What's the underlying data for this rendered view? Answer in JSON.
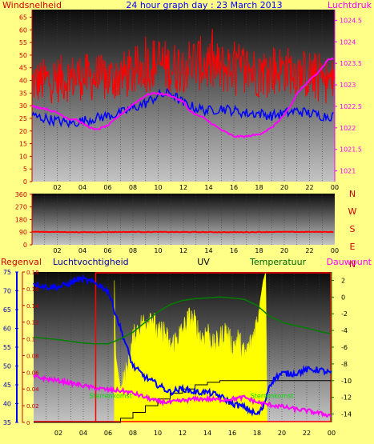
{
  "colors": {
    "page_bg": "#ffff88",
    "plot_top": "#0c0c0c",
    "plot_bottom": "#c4c4c4",
    "wind": "#ff0000",
    "pressure": "#ff00ff",
    "rain": "#ff0000",
    "humidity": "#0000ff",
    "uv": "#ffff00",
    "temperature": "#008000",
    "dewpoint": "#ff00ff",
    "day_label": "#00dd00"
  },
  "chart_data": [
    {
      "type": "line",
      "title": "24 hour graph day : 23 March 2013",
      "left_axis_label": "Windsnelheid",
      "right_axis_label": "Luchtdruk",
      "x_ticks": [
        "02",
        "04",
        "06",
        "08",
        "10",
        "12",
        "14",
        "16",
        "18",
        "20",
        "22",
        "00"
      ],
      "y_left": {
        "ylim": [
          0,
          68
        ],
        "ticks": [
          0,
          5,
          10,
          15,
          20,
          25,
          30,
          35,
          40,
          45,
          50,
          55,
          60,
          65
        ]
      },
      "y_right": {
        "ylim": [
          1020.75,
          1024.75
        ],
        "ticks": [
          "1021",
          "1021.5",
          "1022",
          "1022.5",
          "1023",
          "1023.5",
          "1024",
          "1024.5"
        ]
      },
      "x_range_hours": [
        0,
        24
      ],
      "series": [
        {
          "axis": "left",
          "color": "red",
          "style": "gust-band",
          "x": [
            0,
            2,
            4,
            6,
            8,
            9,
            10,
            11,
            12,
            13,
            14,
            15,
            16,
            17,
            18,
            19,
            20,
            21,
            22,
            23,
            24
          ],
          "low": [
            30,
            31,
            32,
            31,
            33,
            35,
            36,
            34,
            35,
            36,
            35,
            34,
            35,
            34,
            33,
            34,
            35,
            34,
            32,
            31,
            30
          ],
          "high": [
            48,
            50,
            51,
            50,
            53,
            56,
            58,
            55,
            57,
            58,
            57,
            55,
            56,
            55,
            53,
            55,
            54,
            53,
            52,
            51,
            48
          ]
        },
        {
          "axis": "left",
          "color": "blue",
          "x": [
            0,
            1,
            2,
            3,
            4,
            5,
            6,
            7,
            8,
            9,
            10,
            11,
            12,
            13,
            14,
            15,
            16,
            17,
            18,
            19,
            20,
            21,
            22,
            23,
            24
          ],
          "y": [
            26,
            25,
            24,
            23,
            24,
            25,
            26,
            27,
            29,
            31,
            34,
            35,
            31,
            29,
            28,
            29,
            28,
            27,
            27,
            26,
            27,
            28,
            27,
            26,
            26
          ]
        },
        {
          "axis": "right",
          "color": "magenta",
          "x": [
            0,
            1,
            2,
            3,
            3.5,
            4,
            5,
            6,
            7,
            8,
            9,
            9.5,
            10,
            11,
            12,
            12.5,
            13,
            13.5,
            14,
            15,
            16,
            17,
            18,
            19,
            20,
            20.5,
            21,
            22,
            23,
            23.5,
            24
          ],
          "y": [
            1022.5,
            1022.45,
            1022.35,
            1022.2,
            1022.2,
            1022.1,
            1021.95,
            1022.05,
            1022.3,
            1022.55,
            1022.75,
            1022.8,
            1022.8,
            1022.75,
            1022.6,
            1022.4,
            1022.3,
            1022.25,
            1022.15,
            1021.95,
            1021.8,
            1021.8,
            1021.85,
            1022.0,
            1022.3,
            1022.5,
            1022.8,
            1023.1,
            1023.4,
            1023.6,
            1023.6
          ]
        }
      ]
    },
    {
      "type": "line",
      "x_ticks": [
        "02",
        "04",
        "06",
        "08",
        "10",
        "12",
        "14",
        "16",
        "18",
        "20",
        "22",
        "00"
      ],
      "ylim": [
        0,
        365
      ],
      "y_ticks": [
        0,
        90,
        180,
        270,
        360
      ],
      "compass": [
        "N",
        "W",
        "S",
        "E",
        "N"
      ],
      "series": [
        {
          "color": "red",
          "x": [
            0,
            4,
            8,
            12,
            16,
            20,
            24
          ],
          "y": [
            93,
            90,
            92,
            91,
            90,
            92,
            92
          ]
        }
      ]
    },
    {
      "type": "line",
      "labels": {
        "rain": "Regenval",
        "humidity": "Luchtvochtigheid",
        "uv": "UV",
        "temperature": "Temperatuur",
        "dewpoint": "Dauwpunt"
      },
      "x_ticks": [
        "02",
        "04",
        "06",
        "08",
        "10",
        "12",
        "14",
        "16",
        "18",
        "20",
        "22",
        "00"
      ],
      "y_rain": {
        "ylim": [
          0,
          0.18
        ],
        "ticks": [
          "0",
          "0.02",
          "0.04",
          "0.06",
          "0.08",
          "0.1",
          "0.12",
          "0.14",
          "0.16",
          "0.18"
        ]
      },
      "y_humidity": {
        "ylim": [
          35,
          75
        ],
        "ticks": [
          35,
          40,
          45,
          50,
          55,
          60,
          65,
          70,
          75
        ]
      },
      "y_temp": {
        "ylim": [
          -15,
          3
        ],
        "ticks": [
          -14,
          -12,
          -10,
          -8,
          -6,
          -4,
          -2,
          0,
          2
        ]
      },
      "sunrise_label": "Sterrenkomst",
      "sunset_label": "Sterrenkomst",
      "day_window_hours": [
        5,
        24
      ],
      "series": [
        {
          "name": "Luchtvochtigheid",
          "axis": "humidity",
          "color": "blue",
          "x": [
            0,
            1,
            2,
            3,
            3.5,
            4,
            5,
            6,
            7,
            7.5,
            8,
            9,
            10,
            11,
            12,
            13,
            14,
            15,
            16,
            17,
            18,
            18.5,
            19,
            19.5,
            20,
            21,
            22,
            23,
            24
          ],
          "y": [
            72,
            71,
            71,
            72,
            73,
            73,
            72,
            70,
            60,
            55,
            50,
            47,
            45,
            43,
            44,
            43,
            43,
            42,
            40,
            39,
            37,
            39,
            45,
            47,
            48,
            48,
            49,
            49,
            48
          ]
        },
        {
          "name": "Temperatuur",
          "axis": "temp",
          "color": "green",
          "x": [
            0,
            2,
            4,
            5,
            6,
            7,
            8,
            9,
            10,
            11,
            12,
            13,
            14,
            15,
            16,
            17,
            18,
            19,
            20,
            21,
            22,
            23,
            24
          ],
          "y": [
            -4.8,
            -5.1,
            -5.5,
            -5.6,
            -5.6,
            -5.0,
            -4.2,
            -3.0,
            -1.8,
            -0.9,
            -0.4,
            -0.2,
            -0.1,
            0.0,
            -0.1,
            -0.3,
            -1.0,
            -2.3,
            -3.0,
            -3.4,
            -3.7,
            -4.1,
            -4.4
          ]
        },
        {
          "name": "Dauwpunt",
          "axis": "temp",
          "color": "magenta",
          "x": [
            0,
            1,
            2,
            3,
            4,
            5,
            6,
            7,
            8,
            9,
            10,
            11,
            12,
            13,
            14,
            15,
            16,
            17,
            18,
            19,
            20,
            21,
            22,
            23,
            24
          ],
          "y": [
            -9.5,
            -9.8,
            -10.0,
            -10.3,
            -10.6,
            -10.9,
            -11.1,
            -11.2,
            -11.5,
            -12.0,
            -12.5,
            -12.6,
            -12.4,
            -12.2,
            -12.2,
            -12.3,
            -12.2,
            -12.0,
            -12.6,
            -12.9,
            -13.1,
            -13.4,
            -13.6,
            -13.9,
            -14.2
          ]
        },
        {
          "name": "UV",
          "axis": "rain",
          "color": "yellow",
          "style": "area",
          "x": [
            6.5,
            6.6,
            7,
            7.5,
            8,
            8.5,
            9,
            9.5,
            10,
            10.5,
            11,
            11.5,
            12,
            12.5,
            13,
            13.5,
            14,
            14.5,
            15,
            15.5,
            16,
            16.5,
            17,
            17.5,
            18,
            18.5,
            18.7,
            18.8
          ],
          "y": [
            0.17,
            0.08,
            0.04,
            0.06,
            0.1,
            0.115,
            0.12,
            0.13,
            0.105,
            0.11,
            0.09,
            0.1,
            0.11,
            0.125,
            0.12,
            0.1,
            0.11,
            0.09,
            0.1,
            0.11,
            0.09,
            0.1,
            0.08,
            0.095,
            0.12,
            0.17,
            0.18,
            0
          ]
        },
        {
          "name": "Regenval",
          "axis": "rain",
          "color": "black",
          "style": "step",
          "x": [
            0,
            6.5,
            7,
            8,
            9,
            10,
            11,
            12,
            13,
            14,
            15,
            16,
            17,
            18,
            18.8,
            24
          ],
          "y": [
            0,
            0,
            0.005,
            0.012,
            0.02,
            0.028,
            0.035,
            0.04,
            0.045,
            0.048,
            0.05,
            0.05,
            0.05,
            0.05,
            0.05,
            0
          ]
        }
      ]
    }
  ]
}
